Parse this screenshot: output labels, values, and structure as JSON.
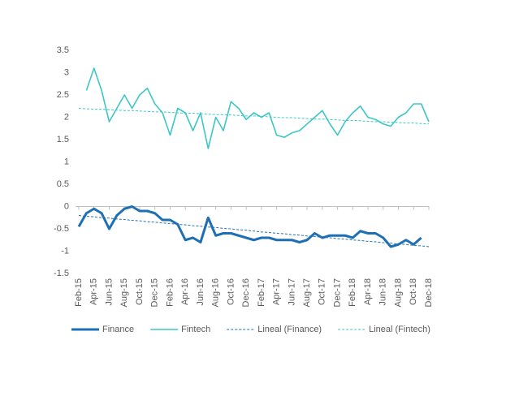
{
  "chart_data": {
    "type": "line",
    "categories": [
      "Feb-15",
      null,
      "Apr-15",
      null,
      "Jun-15",
      null,
      "Aug-15",
      null,
      "Oct-15",
      null,
      "Dec-15",
      null,
      "Feb-16",
      null,
      "Apr-16",
      null,
      "Jun-16",
      null,
      "Aug-16",
      null,
      "Oct-16",
      null,
      "Dec-16",
      null,
      "Feb-17",
      null,
      "Apr-17",
      null,
      "Jun-17",
      null,
      "Aug-17",
      null,
      "Oct-17",
      null,
      "Dec-17",
      null,
      "Feb-18",
      null,
      "Apr-18",
      null,
      "Jun-18",
      null,
      "Aug-18",
      null,
      "Oct-18",
      null,
      "Dec-18"
    ],
    "series": [
      {
        "name": "Finance",
        "color": "#1f6fb5",
        "width": 3,
        "dash": false,
        "values": [
          -0.45,
          -0.15,
          -0.05,
          -0.15,
          -0.5,
          -0.2,
          -0.05,
          0.0,
          -0.1,
          -0.1,
          -0.15,
          -0.3,
          -0.3,
          -0.4,
          -0.75,
          -0.7,
          -0.8,
          -0.25,
          -0.65,
          -0.6,
          -0.6,
          -0.65,
          -0.7,
          -0.75,
          -0.7,
          -0.7,
          -0.75,
          -0.75,
          -0.75,
          -0.8,
          -0.75,
          -0.6,
          -0.7,
          -0.65,
          -0.65,
          -0.65,
          -0.7,
          -0.55,
          -0.6,
          -0.6,
          -0.7,
          -0.9,
          -0.85,
          -0.75,
          -0.85,
          -0.7,
          null
        ]
      },
      {
        "name": "Fintech",
        "color": "#3fc6c6",
        "width": 1.6,
        "dash": false,
        "values": [
          null,
          2.6,
          3.1,
          2.6,
          1.9,
          2.2,
          2.5,
          2.2,
          2.5,
          2.65,
          2.3,
          2.1,
          1.6,
          2.2,
          2.1,
          1.7,
          2.1,
          1.3,
          2.0,
          1.7,
          2.35,
          2.2,
          1.95,
          2.1,
          2.0,
          2.1,
          1.6,
          1.55,
          1.65,
          1.7,
          1.85,
          2.0,
          2.15,
          1.85,
          1.6,
          1.9,
          2.1,
          2.25,
          2.0,
          1.95,
          1.85,
          1.8,
          2.0,
          2.1,
          2.3,
          2.3,
          1.9
        ]
      },
      {
        "name": "Lineal (Finance)",
        "color": "#1f6fb5",
        "width": 1,
        "dash": true,
        "values": [
          -0.2,
          -0.22,
          -0.23,
          -0.25,
          -0.26,
          -0.28,
          -0.29,
          -0.31,
          -0.32,
          -0.34,
          -0.35,
          -0.37,
          -0.38,
          -0.4,
          -0.41,
          -0.43,
          -0.44,
          -0.46,
          -0.47,
          -0.49,
          -0.5,
          -0.52,
          -0.53,
          -0.55,
          -0.57,
          -0.58,
          -0.6,
          -0.61,
          -0.63,
          -0.64,
          -0.66,
          -0.67,
          -0.69,
          -0.7,
          -0.72,
          -0.73,
          -0.75,
          -0.76,
          -0.78,
          -0.79,
          -0.81,
          -0.82,
          -0.84,
          -0.85,
          -0.87,
          -0.88,
          -0.9
        ]
      },
      {
        "name": "Lineal (Fintech)",
        "color": "#3fc6c6",
        "width": 1,
        "dash": true,
        "values": [
          2.2,
          2.19,
          2.18,
          2.18,
          2.17,
          2.16,
          2.15,
          2.15,
          2.14,
          2.13,
          2.12,
          2.12,
          2.11,
          2.1,
          2.09,
          2.09,
          2.08,
          2.07,
          2.06,
          2.06,
          2.05,
          2.04,
          2.03,
          2.03,
          2.02,
          2.01,
          2.0,
          1.99,
          1.99,
          1.98,
          1.97,
          1.96,
          1.96,
          1.95,
          1.94,
          1.93,
          1.93,
          1.92,
          1.91,
          1.9,
          1.9,
          1.89,
          1.88,
          1.87,
          1.87,
          1.86,
          1.85
        ]
      }
    ],
    "ylim": [
      -1.5,
      3.5
    ],
    "yticks": [
      -1.5,
      -1,
      -0.5,
      0,
      0.5,
      1,
      1.5,
      2,
      2.5,
      3,
      3.5
    ],
    "grid": false,
    "legend": "bottom"
  }
}
